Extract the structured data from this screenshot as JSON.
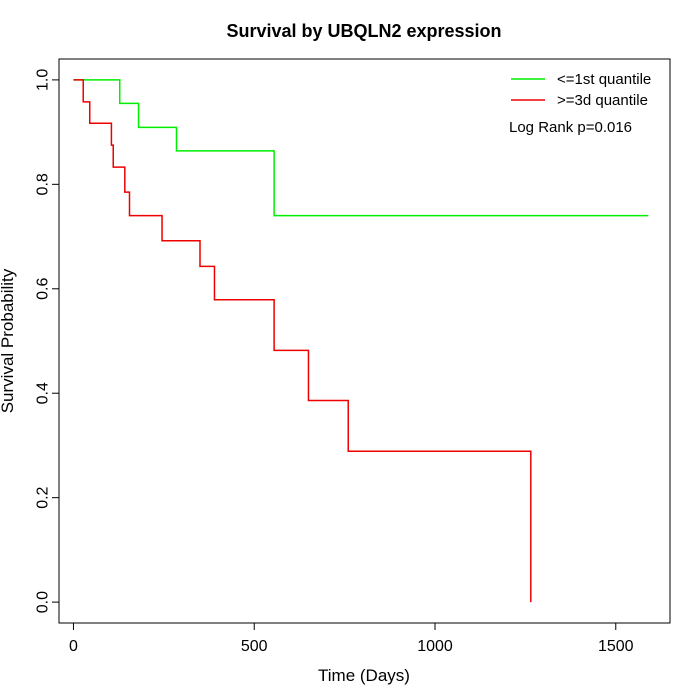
{
  "chart_data": {
    "type": "line",
    "title": "Survival by UBQLN2 expression",
    "xlabel": "Time (Days)",
    "ylabel": "Survival Probability",
    "xlim": [
      -40,
      1650
    ],
    "ylim": [
      -0.04,
      1.04
    ],
    "x_ticks": [
      0,
      500,
      1000,
      1500
    ],
    "x_tick_labels": [
      "0",
      "500",
      "1000",
      "1500"
    ],
    "y_ticks": [
      0,
      0.2,
      0.4,
      0.6,
      0.8,
      1.0
    ],
    "y_tick_labels": [
      "0.0",
      "0.2",
      "0.4",
      "0.6",
      "0.8",
      "1.0"
    ],
    "grid": false,
    "legend_position": "top-right",
    "annotation": "Log Rank p=0.016",
    "series": [
      {
        "name": "<=1st quantile",
        "color": "#00ee00",
        "step": true,
        "x": [
          0,
          128,
          180,
          285,
          555,
          1590
        ],
        "y": [
          1.0,
          0.955,
          0.909,
          0.864,
          0.74,
          0.74
        ]
      },
      {
        "name": ">=3d quantile",
        "color": "#ee0000",
        "step": true,
        "x": [
          0,
          27,
          45,
          105,
          110,
          142,
          155,
          245,
          350,
          390,
          555,
          650,
          760,
          1265,
          1265
        ],
        "y": [
          1.0,
          0.958,
          0.917,
          0.875,
          0.833,
          0.785,
          0.74,
          0.692,
          0.643,
          0.579,
          0.482,
          0.386,
          0.289,
          0.289,
          0.0
        ]
      }
    ]
  }
}
